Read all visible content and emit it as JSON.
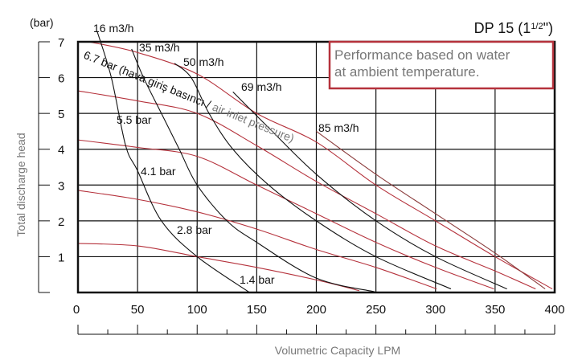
{
  "chart_data": {
    "type": "line",
    "title": "DP 15 (1½\")",
    "title_parts": {
      "main": "DP 15 (1",
      "fraction": "1/2",
      "close": "\")"
    },
    "note": [
      "Performance based on water",
      "at ambient temperature."
    ],
    "xlabel": "Volumetric Capacity LPM",
    "ylabel": "Total discharge head",
    "yunit": "(bar)",
    "xlim": [
      0,
      400
    ],
    "ylim": [
      0,
      7
    ],
    "xticks": [
      0,
      50,
      100,
      150,
      200,
      250,
      300,
      350,
      400
    ],
    "yticks": [
      1,
      2,
      3,
      4,
      5,
      6,
      7
    ],
    "grid": true,
    "colors": {
      "pressure": "#b5323c",
      "flow": "#111111",
      "note_border": "#b5323c"
    },
    "pressure_annotation": {
      "prefix": "6.7 bar (hava giriş basıncı / ",
      "suffix": "air inlet pressure)"
    },
    "pressure_series": [
      {
        "name": "6.7 bar",
        "points": [
          [
            9,
            7
          ],
          [
            50,
            6.7
          ],
          [
            100,
            6.1
          ],
          [
            150,
            5.0
          ],
          [
            200,
            4.2
          ],
          [
            250,
            3.0
          ],
          [
            300,
            2.0
          ],
          [
            350,
            1.0
          ],
          [
            398,
            0.1
          ]
        ]
      },
      {
        "name": "5.5 bar",
        "points": [
          [
            0,
            5.63
          ],
          [
            50,
            5.35
          ],
          [
            100,
            5.0
          ],
          [
            150,
            4.1
          ],
          [
            200,
            3.1
          ],
          [
            250,
            2.2
          ],
          [
            300,
            1.3
          ],
          [
            350,
            0.6
          ],
          [
            384,
            0.1
          ]
        ]
      },
      {
        "name": "4.1 bar",
        "points": [
          [
            0,
            4.26
          ],
          [
            50,
            4.05
          ],
          [
            100,
            3.8
          ],
          [
            150,
            3.0
          ],
          [
            200,
            2.2
          ],
          [
            250,
            1.4
          ],
          [
            300,
            0.7
          ],
          [
            349,
            0.1
          ]
        ]
      },
      {
        "name": "2.8 bar",
        "points": [
          [
            0,
            2.85
          ],
          [
            50,
            2.6
          ],
          [
            100,
            2.25
          ],
          [
            150,
            1.77
          ],
          [
            200,
            1.2
          ],
          [
            250,
            0.7
          ],
          [
            301,
            0.1
          ]
        ]
      },
      {
        "name": "1.4 bar",
        "points": [
          [
            0,
            1.37
          ],
          [
            50,
            1.3
          ],
          [
            100,
            1.0
          ],
          [
            150,
            0.7
          ],
          [
            200,
            0.35
          ],
          [
            236,
            0.05
          ]
        ]
      }
    ],
    "flow_series": [
      {
        "name": "16 m3/h",
        "points": [
          [
            16,
            7.3
          ],
          [
            28,
            6
          ],
          [
            40,
            4.1
          ],
          [
            50,
            3.4
          ],
          [
            70,
            2
          ],
          [
            100,
            1
          ],
          [
            144,
            0
          ]
        ]
      },
      {
        "name": "35 m3/h",
        "points": [
          [
            45,
            6.8
          ],
          [
            55,
            6
          ],
          [
            70,
            5
          ],
          [
            85,
            4
          ],
          [
            100,
            3
          ],
          [
            125,
            2
          ],
          [
            150,
            1.4
          ],
          [
            200,
            0.4
          ],
          [
            249,
            0.02
          ]
        ]
      },
      {
        "name": "50 m3/h",
        "points": [
          [
            81,
            6.4
          ],
          [
            95,
            6
          ],
          [
            110,
            5
          ],
          [
            130,
            4
          ],
          [
            160,
            3
          ],
          [
            200,
            2
          ],
          [
            250,
            1
          ],
          [
            313,
            0.1
          ]
        ]
      },
      {
        "name": "69 m3/h",
        "points": [
          [
            130,
            5.6
          ],
          [
            160,
            4.6
          ],
          [
            200,
            3.3
          ],
          [
            250,
            2
          ],
          [
            300,
            1
          ],
          [
            360,
            0.1
          ]
        ]
      },
      {
        "name": "85 m3/h",
        "points": [
          [
            200,
            4.5
          ],
          [
            250,
            3.3
          ],
          [
            300,
            2.2
          ],
          [
            350,
            1.1
          ],
          [
            392,
            0.1
          ]
        ]
      }
    ]
  }
}
